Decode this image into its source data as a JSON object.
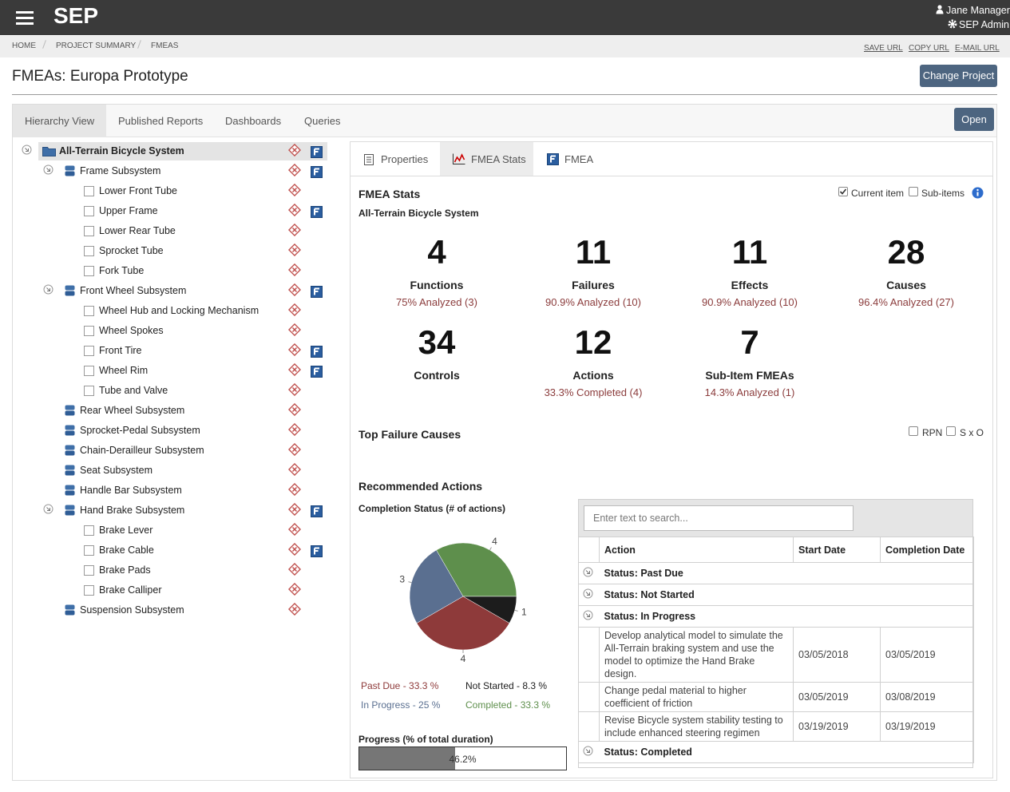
{
  "header": {
    "app_name": "SEP",
    "user": "Jane Manager",
    "role": "SEP Admin"
  },
  "breadcrumb": [
    "HOME",
    "PROJECT SUMMARY",
    "FMEAS"
  ],
  "url_actions": [
    "SAVE URL",
    "COPY URL",
    "E-MAIL URL"
  ],
  "page_title": "FMEAs: Europa Prototype",
  "change_project_button": "Change Project",
  "tabs": [
    "Hierarchy View",
    "Published Reports",
    "Dashboards",
    "Queries"
  ],
  "open_button": "Open",
  "tree": {
    "label": "All-Terrain Bicycle System",
    "fmea": true,
    "children": [
      {
        "label": "Frame Subsystem",
        "fmea": true,
        "children": [
          {
            "label": "Lower Front Tube",
            "fmea": false
          },
          {
            "label": "Upper Frame",
            "fmea": true
          },
          {
            "label": "Lower Rear Tube",
            "fmea": false
          },
          {
            "label": "Sprocket Tube",
            "fmea": false
          },
          {
            "label": "Fork Tube",
            "fmea": false
          }
        ]
      },
      {
        "label": "Front Wheel Subsystem",
        "fmea": true,
        "children": [
          {
            "label": "Wheel Hub and Locking Mechanism",
            "fmea": false
          },
          {
            "label": "Wheel Spokes",
            "fmea": false
          },
          {
            "label": "Front Tire",
            "fmea": true
          },
          {
            "label": "Wheel Rim",
            "fmea": true
          },
          {
            "label": "Tube and Valve",
            "fmea": false
          }
        ]
      },
      {
        "label": "Rear Wheel Subsystem",
        "fmea": false
      },
      {
        "label": "Sprocket-Pedal Subsystem",
        "fmea": false
      },
      {
        "label": "Chain-Derailleur Subsystem",
        "fmea": false
      },
      {
        "label": "Seat Subsystem",
        "fmea": false
      },
      {
        "label": "Handle Bar Subsystem",
        "fmea": false
      },
      {
        "label": "Hand Brake Subsystem",
        "fmea": true,
        "children": [
          {
            "label": "Brake Lever",
            "fmea": false
          },
          {
            "label": "Brake Cable",
            "fmea": true
          },
          {
            "label": "Brake Pads",
            "fmea": false
          },
          {
            "label": "Brake Calliper",
            "fmea": false
          }
        ]
      },
      {
        "label": "Suspension Subsystem",
        "fmea": false
      }
    ]
  },
  "detail_tabs": [
    "Properties",
    "FMEA Stats",
    "FMEA"
  ],
  "stats": {
    "title": "FMEA Stats",
    "item": "All-Terrain Bicycle System",
    "options": [
      {
        "label": "Current item",
        "checked": true
      },
      {
        "label": "Sub-items",
        "checked": false
      }
    ],
    "cards": [
      {
        "value": 4,
        "label": "Functions",
        "note": "75% Analyzed (3)"
      },
      {
        "value": 11,
        "label": "Failures",
        "note": "90.9% Analyzed (10)"
      },
      {
        "value": 11,
        "label": "Effects",
        "note": "90.9% Analyzed (10)"
      },
      {
        "value": 28,
        "label": "Causes",
        "note": "96.4% Analyzed (27)"
      },
      {
        "value": 34,
        "label": "Controls"
      },
      {
        "value": 12,
        "label": "Actions",
        "note": "33.3% Completed (4)"
      },
      {
        "value": 7,
        "label": "Sub-Item FMEAs",
        "note": "14.3% Analyzed (1)"
      }
    ]
  },
  "top_failure_causes": {
    "title": "Top Failure Causes",
    "options": [
      {
        "label": "RPN",
        "checked": false
      },
      {
        "label": "S x O",
        "checked": false
      }
    ]
  },
  "recommended_actions": {
    "title": "Recommended Actions",
    "search_placeholder": "Enter text to search...",
    "columns": [
      "Action",
      "Start Date",
      "Completion Date"
    ],
    "groups": [
      {
        "status": "Status: Past Due"
      },
      {
        "status": "Status: Not Started"
      },
      {
        "status": "Status: In Progress",
        "rows": [
          {
            "action": "Develop analytical model to simulate the All-Terrain braking system and use the model to optimize the Hand Brake design.",
            "start": "03/05/2018",
            "completion": "03/05/2019"
          },
          {
            "action": "Change pedal material to higher coefficient of friction",
            "start": "03/05/2019",
            "completion": "03/08/2019"
          },
          {
            "action": "Revise Bicycle system stability testing to include enhanced steering regimen",
            "start": "03/19/2019",
            "completion": "03/19/2019"
          }
        ]
      },
      {
        "status": "Status: Completed"
      }
    ]
  },
  "chart_data": {
    "type": "pie",
    "title": "Completion Status (# of actions)",
    "categories": [
      "Completed",
      "Not Started",
      "Past Due",
      "In Progress"
    ],
    "values": [
      4,
      1,
      4,
      3
    ],
    "colors": [
      "#5e8f4c",
      "#1c1c1c",
      "#8e3a3a",
      "#5a6f90"
    ],
    "legend_labels": [
      "Completed - 33.3 %",
      "Not Started - 8.3 %",
      "Past Due - 33.3 %",
      "In Progress - 25 %"
    ]
  },
  "progress": {
    "title": "Progress (% of total duration)",
    "value": 46.2,
    "value_label": "46.2%"
  }
}
